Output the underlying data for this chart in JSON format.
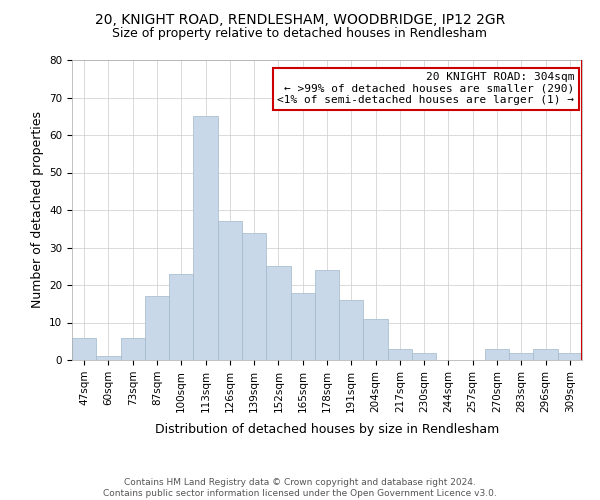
{
  "title": "20, KNIGHT ROAD, RENDLESHAM, WOODBRIDGE, IP12 2GR",
  "subtitle": "Size of property relative to detached houses in Rendlesham",
  "xlabel": "Distribution of detached houses by size in Rendlesham",
  "ylabel": "Number of detached properties",
  "footer_line1": "Contains HM Land Registry data © Crown copyright and database right 2024.",
  "footer_line2": "Contains public sector information licensed under the Open Government Licence v3.0.",
  "categories": [
    "47sqm",
    "60sqm",
    "73sqm",
    "87sqm",
    "100sqm",
    "113sqm",
    "126sqm",
    "139sqm",
    "152sqm",
    "165sqm",
    "178sqm",
    "191sqm",
    "204sqm",
    "217sqm",
    "230sqm",
    "244sqm",
    "257sqm",
    "270sqm",
    "283sqm",
    "296sqm",
    "309sqm"
  ],
  "values": [
    6,
    1,
    6,
    17,
    23,
    65,
    37,
    34,
    25,
    18,
    24,
    16,
    11,
    3,
    2,
    0,
    0,
    3,
    2,
    3,
    2
  ],
  "bar_color": "#c8d8e8",
  "bar_edge_color": "#a0b8cc",
  "grid_color": "#cccccc",
  "annotation_box_edge_color": "#cc0000",
  "annotation_title": "20 KNIGHT ROAD: 304sqm",
  "annotation_line1": "← >99% of detached houses are smaller (290)",
  "annotation_line2": "<1% of semi-detached houses are larger (1) →",
  "marker_line_color": "#cc0000",
  "ylim": [
    0,
    80
  ],
  "yticks": [
    0,
    10,
    20,
    30,
    40,
    50,
    60,
    70,
    80
  ],
  "background_color": "#ffffff",
  "title_fontsize": 10,
  "subtitle_fontsize": 9,
  "axis_label_fontsize": 9,
  "tick_fontsize": 7.5,
  "annotation_fontsize": 8,
  "footer_fontsize": 6.5
}
